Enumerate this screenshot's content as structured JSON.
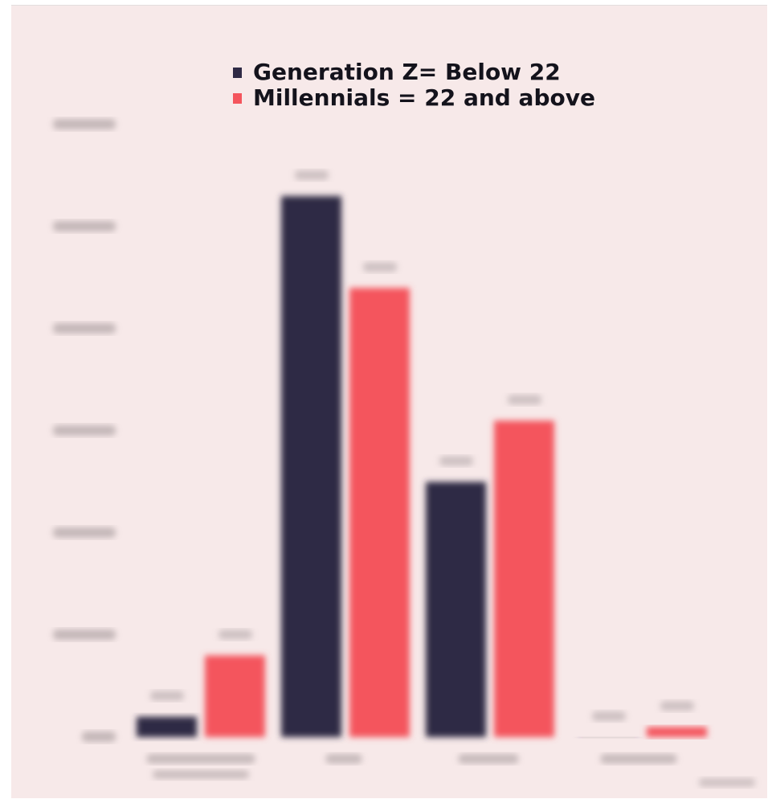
{
  "chart_data": {
    "type": "bar",
    "categories": [
      "",
      "",
      "",
      ""
    ],
    "series": [
      {
        "name": "Generation Z= Below 22",
        "color": "#2f2a45",
        "values": [
          0.2,
          5.3,
          2.5,
          0.0
        ]
      },
      {
        "name": "Millennials = 22 and above",
        "color": "#f4555d",
        "values": [
          0.8,
          4.4,
          3.1,
          0.1
        ]
      }
    ],
    "ylim": [
      0,
      6
    ],
    "ytick_count": 7,
    "grid": false,
    "legend_position": "top-center",
    "background": "#f7e9e9"
  }
}
